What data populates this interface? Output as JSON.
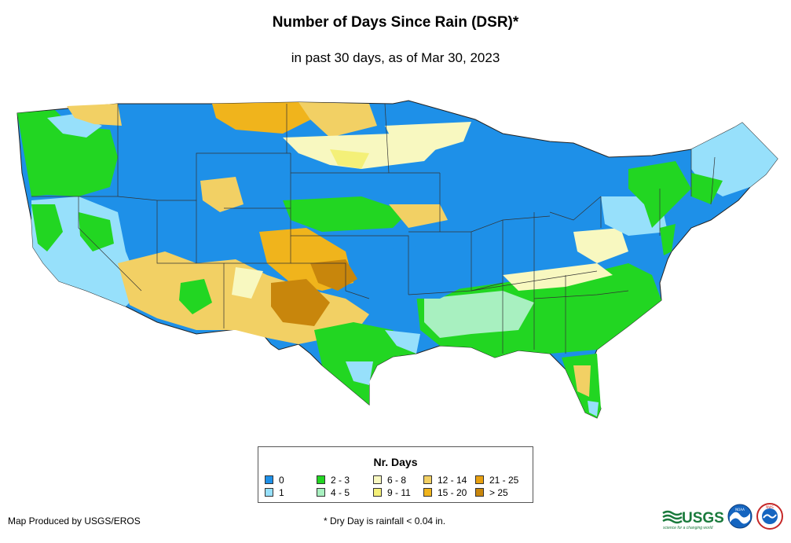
{
  "title": "Number of Days Since Rain (DSR)*",
  "subtitle": "in past 30 days, as of Mar 30, 2023",
  "legend": {
    "title": "Nr. Days",
    "items": [
      {
        "label": "0",
        "color": "#1e90e8"
      },
      {
        "label": "1",
        "color": "#97e0fb"
      },
      {
        "label": "2 - 3",
        "color": "#22d622"
      },
      {
        "label": "4 - 5",
        "color": "#a8f0c0"
      },
      {
        "label": "6 - 8",
        "color": "#f8f8c0"
      },
      {
        "label": "9 - 11",
        "color": "#f4f078"
      },
      {
        "label": "12 - 14",
        "color": "#f2d064"
      },
      {
        "label": "15 - 20",
        "color": "#f0b41c"
      },
      {
        "label": "21 - 25",
        "color": "#e8a010"
      },
      {
        "label": "> 25",
        "color": "#c8860c"
      }
    ]
  },
  "credit": "Map Produced by USGS/EROS",
  "footnote": "* Dry Day is rainfall < 0.04 in.",
  "logos": {
    "usgs": "USGS",
    "usgs_tagline": "science for a changing world",
    "noaa": "NOAA",
    "nws": "NWS"
  }
}
